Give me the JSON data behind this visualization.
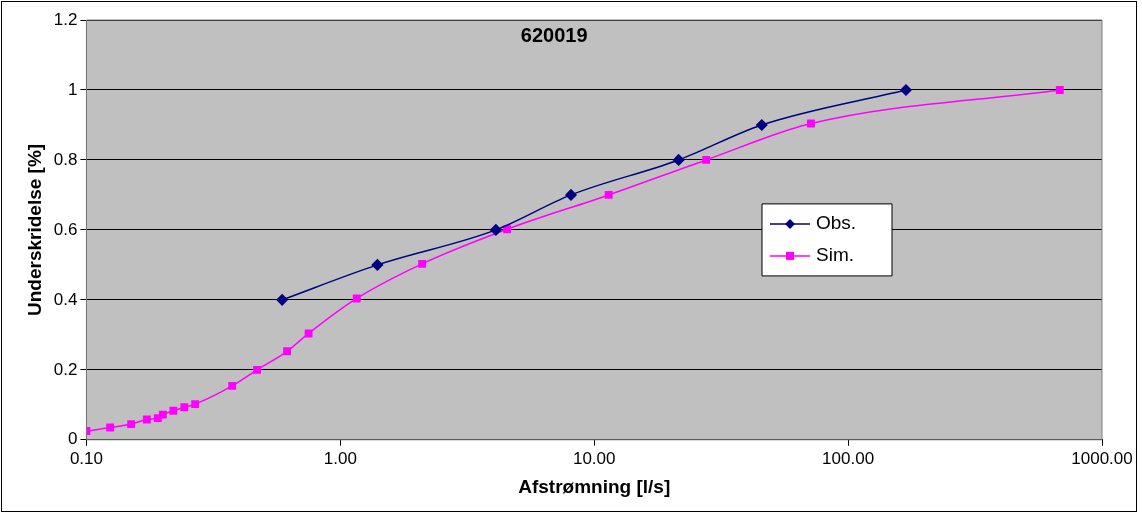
{
  "chart_data": {
    "type": "line",
    "title": "620019",
    "xlabel": "Afstrømning [l/s]",
    "ylabel": "Underskridelse [%]",
    "log": "x",
    "xlim": [
      0.1,
      1000
    ],
    "xticks": [
      {
        "value": 0.1,
        "label": "0.10"
      },
      {
        "value": 1,
        "label": "1.00"
      },
      {
        "value": 10,
        "label": "10.00"
      },
      {
        "value": 100,
        "label": "100.00"
      },
      {
        "value": 1000,
        "label": "1000.00"
      }
    ],
    "ylim": [
      0,
      1.2
    ],
    "yticks": [
      0,
      0.2,
      0.4,
      0.6,
      0.8,
      1,
      1.2
    ],
    "grid": "y",
    "legend": "right",
    "series": [
      {
        "name": "Obs.",
        "color": "#000080",
        "marker": "diamond",
        "x": [
          0.59,
          1.4,
          4.1,
          8.1,
          21.5,
          45.7,
          169
        ],
        "values": [
          0.4,
          0.5,
          0.6,
          0.7,
          0.8,
          0.9,
          1.0
        ]
      },
      {
        "name": "Sim.",
        "color": "#ff00ff",
        "marker": "square",
        "x": [
          0.1,
          0.124,
          0.15,
          0.173,
          0.191,
          0.2,
          0.22,
          0.243,
          0.268,
          0.375,
          0.47,
          0.617,
          0.75,
          1.16,
          2.1,
          4.54,
          11.4,
          27.6,
          71.4,
          682
        ],
        "values": [
          0.025,
          0.035,
          0.045,
          0.058,
          0.062,
          0.072,
          0.083,
          0.093,
          0.102,
          0.154,
          0.2,
          0.253,
          0.304,
          0.404,
          0.503,
          0.602,
          0.7,
          0.8,
          0.904,
          1.0
        ]
      }
    ]
  }
}
